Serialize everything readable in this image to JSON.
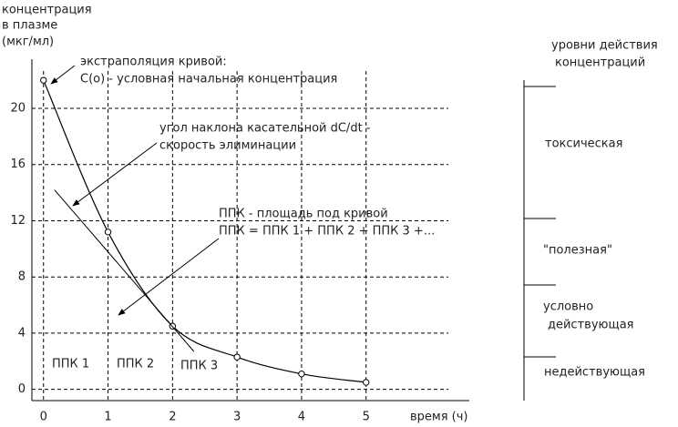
{
  "chart_data": {
    "type": "line",
    "y_label": [
      "концентрация",
      "в плазме",
      "(мкг/мл)"
    ],
    "x_label": "время (ч)",
    "x": [
      0,
      1,
      2,
      3,
      4,
      5
    ],
    "series": [
      {
        "color": "#000000",
        "values": [
          22,
          11.2,
          4.5,
          2.3,
          1.1,
          0.5
        ]
      }
    ],
    "tangent": {
      "x": [
        0.17,
        2.33
      ],
      "values": [
        14.2,
        2.7
      ]
    },
    "xlim": [
      -0.18,
      6.6
    ],
    "ylim": [
      -0.8,
      23.5
    ],
    "xticks": [
      0,
      1,
      2,
      3,
      4,
      5
    ],
    "yticks": [
      0,
      4,
      8,
      12,
      16,
      20
    ],
    "grid": true,
    "annotations": {
      "extrapolation": [
        "экстраполяция кривой:",
        "C(o) - условная начальная концентрация"
      ],
      "slope": [
        "угол наклона касательной dC/dt -",
        "скорость элиминации"
      ],
      "auc": [
        "ППК - площадь под кривой",
        "ППК = ППК 1 + ППК 2 + ППК 3 +..."
      ],
      "auc_parts": [
        "ППК 1",
        "ППК 2",
        "ППК 3"
      ]
    },
    "levels": {
      "title": [
        "уровни действия",
        "концентраций"
      ],
      "labels": [
        [
          "токсическая"
        ],
        [
          "\"полезная\""
        ],
        [
          "условно",
          "действующая"
        ],
        [
          "недействующая"
        ]
      ]
    }
  }
}
